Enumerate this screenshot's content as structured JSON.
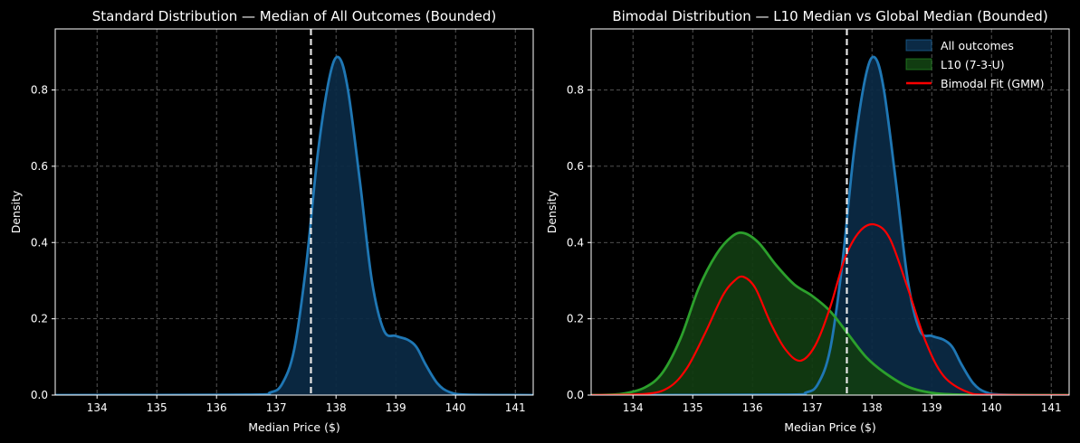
{
  "chart_data": [
    {
      "type": "area",
      "title": "Standard Distribution — Median of All Outcomes (Bounded)",
      "xlabel": "Median Price ($)",
      "ylabel": "Density",
      "xlim": [
        133.3,
        141.3
      ],
      "ylim": [
        0,
        0.96
      ],
      "xticks": [
        "134",
        "135",
        "136",
        "137",
        "138",
        "139",
        "140",
        "141"
      ],
      "yticks": [
        "0.0",
        "0.2",
        "0.4",
        "0.6",
        "0.8"
      ],
      "grid": true,
      "vline": 137.58,
      "series": [
        {
          "kind": "area",
          "color": "#1f77b4",
          "fill": "#0b2a45",
          "x": [
            133.3,
            136.5,
            136.9,
            137.1,
            137.3,
            137.5,
            137.7,
            137.9,
            138.05,
            138.2,
            138.4,
            138.6,
            138.8,
            139.0,
            139.2,
            139.35,
            139.5,
            139.7,
            139.9,
            140.2,
            141.3
          ],
          "y": [
            0,
            0.001,
            0.007,
            0.03,
            0.12,
            0.34,
            0.64,
            0.84,
            0.885,
            0.8,
            0.56,
            0.3,
            0.17,
            0.155,
            0.145,
            0.125,
            0.08,
            0.03,
            0.008,
            0.001,
            0
          ]
        }
      ]
    },
    {
      "type": "area",
      "title": "Bimodal Distribution — L10 Median vs Global Median (Bounded)",
      "xlabel": "Median Price ($)",
      "ylabel": "Density",
      "xlim": [
        133.3,
        141.3
      ],
      "ylim": [
        0,
        0.96
      ],
      "xticks": [
        "134",
        "135",
        "136",
        "137",
        "138",
        "139",
        "140",
        "141"
      ],
      "yticks": [
        "0.0",
        "0.2",
        "0.4",
        "0.6",
        "0.8"
      ],
      "grid": true,
      "vline": 137.58,
      "legend_position": "top-right",
      "series": [
        {
          "name": "All outcomes",
          "kind": "area",
          "color": "#1f77b4",
          "fill": "#0b2a45",
          "x": [
            133.3,
            136.5,
            136.9,
            137.1,
            137.3,
            137.5,
            137.7,
            137.9,
            138.05,
            138.2,
            138.4,
            138.6,
            138.8,
            139.0,
            139.2,
            139.35,
            139.5,
            139.7,
            139.9,
            140.2,
            141.3
          ],
          "y": [
            0,
            0.001,
            0.007,
            0.03,
            0.12,
            0.34,
            0.64,
            0.84,
            0.885,
            0.8,
            0.56,
            0.3,
            0.17,
            0.155,
            0.145,
            0.125,
            0.08,
            0.03,
            0.008,
            0.001,
            0
          ]
        },
        {
          "name": "L10 (7-3-U)",
          "kind": "area",
          "color": "#2ca02c",
          "fill": "#113c11",
          "x": [
            133.3,
            133.8,
            134.2,
            134.5,
            134.8,
            135.1,
            135.4,
            135.65,
            135.85,
            136.1,
            136.4,
            136.7,
            137.0,
            137.3,
            137.6,
            137.9,
            138.2,
            138.6,
            139.0,
            139.5,
            140.0,
            141.3
          ],
          "y": [
            0,
            0.003,
            0.02,
            0.06,
            0.15,
            0.28,
            0.37,
            0.415,
            0.425,
            0.4,
            0.34,
            0.29,
            0.26,
            0.22,
            0.16,
            0.1,
            0.06,
            0.022,
            0.006,
            0.001,
            0,
            0
          ]
        },
        {
          "name": "Bimodal Fit (GMM)",
          "kind": "line",
          "color": "#ff0000",
          "x": [
            133.3,
            134.2,
            134.6,
            134.9,
            135.2,
            135.5,
            135.7,
            135.85,
            136.05,
            136.3,
            136.55,
            136.8,
            137.05,
            137.3,
            137.55,
            137.8,
            138.05,
            138.3,
            138.6,
            138.9,
            139.2,
            139.6,
            140.0,
            141.3
          ],
          "y": [
            0,
            0.003,
            0.02,
            0.07,
            0.16,
            0.26,
            0.3,
            0.31,
            0.28,
            0.19,
            0.12,
            0.09,
            0.13,
            0.23,
            0.36,
            0.43,
            0.447,
            0.41,
            0.28,
            0.14,
            0.05,
            0.008,
            0.001,
            0
          ]
        }
      ]
    }
  ]
}
